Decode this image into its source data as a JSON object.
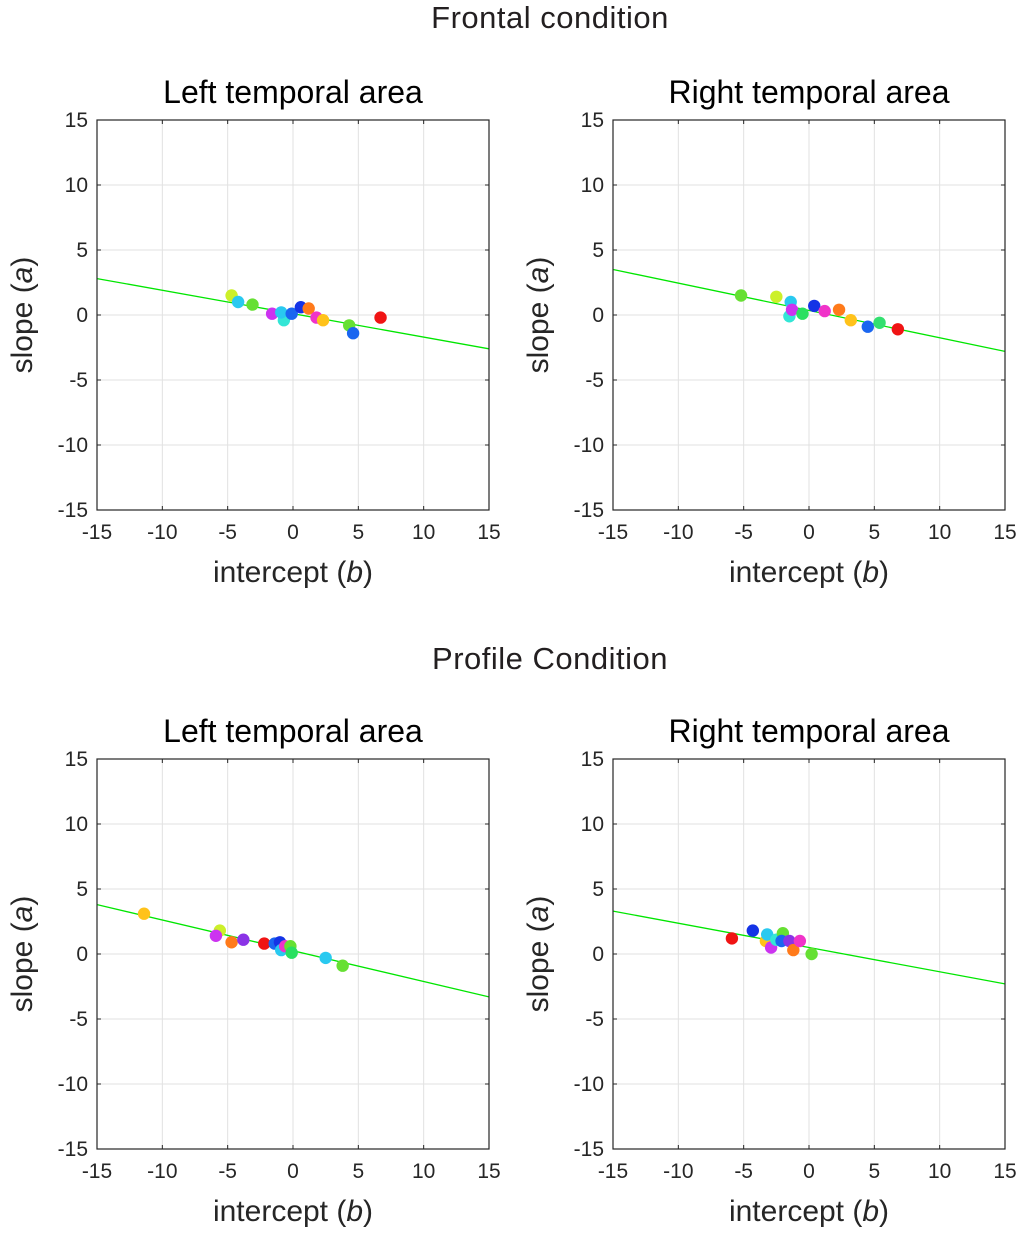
{
  "figure": {
    "sections": [
      {
        "title": "Frontal condition"
      },
      {
        "title": "Profile Condition"
      }
    ]
  },
  "chart_data": [
    {
      "type": "scatter",
      "section": "Frontal condition",
      "title": "Left temporal area",
      "xlabel_text": "intercept (",
      "xlabel_var": "b",
      "xlabel_close": ")",
      "ylabel_text": "slope (",
      "ylabel_var": "a",
      "ylabel_close": ")",
      "xlim": [
        -15,
        15
      ],
      "ylim": [
        -15,
        15
      ],
      "xticks": [
        -15,
        -10,
        -5,
        0,
        5,
        10,
        15
      ],
      "yticks": [
        -15,
        -10,
        -5,
        0,
        5,
        10,
        15
      ],
      "grid": true,
      "fit_line": {
        "color": "#00e600",
        "points": [
          [
            -15,
            2.8
          ],
          [
            15,
            -2.6
          ]
        ]
      },
      "points": [
        {
          "x": -4.7,
          "y": 1.5,
          "color": "#ccf029"
        },
        {
          "x": -4.2,
          "y": 1.0,
          "color": "#29c9f0"
        },
        {
          "x": -3.1,
          "y": 0.8,
          "color": "#66e033"
        },
        {
          "x": -1.6,
          "y": 0.1,
          "color": "#cc33f0"
        },
        {
          "x": -0.7,
          "y": -0.4,
          "color": "#33e6d6"
        },
        {
          "x": -0.9,
          "y": 0.2,
          "color": "#29c9f0"
        },
        {
          "x": -0.1,
          "y": 0.1,
          "color": "#1a66f0"
        },
        {
          "x": 0.6,
          "y": 0.6,
          "color": "#1433e6"
        },
        {
          "x": 1.2,
          "y": 0.5,
          "color": "#ff7a1a"
        },
        {
          "x": 1.8,
          "y": -0.2,
          "color": "#f033c9"
        },
        {
          "x": 2.3,
          "y": -0.4,
          "color": "#ffc21a"
        },
        {
          "x": 4.3,
          "y": -0.8,
          "color": "#66e033"
        },
        {
          "x": 4.6,
          "y": -1.4,
          "color": "#1a66f0"
        },
        {
          "x": 6.7,
          "y": -0.2,
          "color": "#f01414"
        }
      ]
    },
    {
      "type": "scatter",
      "section": "Frontal condition",
      "title": "Right temporal area",
      "xlabel_text": "intercept (",
      "xlabel_var": "b",
      "xlabel_close": ")",
      "ylabel_text": "slope (",
      "ylabel_var": "a",
      "ylabel_close": ")",
      "xlim": [
        -15,
        15
      ],
      "ylim": [
        -15,
        15
      ],
      "xticks": [
        -15,
        -10,
        -5,
        0,
        5,
        10,
        15
      ],
      "yticks": [
        -15,
        -10,
        -5,
        0,
        5,
        10,
        15
      ],
      "grid": true,
      "fit_line": {
        "color": "#00e600",
        "points": [
          [
            -15,
            3.5
          ],
          [
            15,
            -2.8
          ]
        ]
      },
      "points": [
        {
          "x": -5.2,
          "y": 1.5,
          "color": "#66e033"
        },
        {
          "x": -2.5,
          "y": 1.4,
          "color": "#ccf029"
        },
        {
          "x": -1.4,
          "y": 1.0,
          "color": "#29c9f0"
        },
        {
          "x": -1.5,
          "y": -0.1,
          "color": "#33e6d6"
        },
        {
          "x": -1.3,
          "y": 0.4,
          "color": "#cc33f0"
        },
        {
          "x": -0.5,
          "y": 0.1,
          "color": "#29e060"
        },
        {
          "x": 0.4,
          "y": 0.7,
          "color": "#1433e6"
        },
        {
          "x": 1.2,
          "y": 0.3,
          "color": "#f033c9"
        },
        {
          "x": 2.3,
          "y": 0.4,
          "color": "#ff7a1a"
        },
        {
          "x": 3.2,
          "y": -0.4,
          "color": "#ffc21a"
        },
        {
          "x": 4.5,
          "y": -0.9,
          "color": "#1a66f0"
        },
        {
          "x": 5.4,
          "y": -0.6,
          "color": "#33e070"
        },
        {
          "x": 6.8,
          "y": -1.1,
          "color": "#f01414"
        }
      ]
    },
    {
      "type": "scatter",
      "section": "Profile Condition",
      "title": "Left temporal area",
      "xlabel_text": "intercept (",
      "xlabel_var": "b",
      "xlabel_close": ")",
      "ylabel_text": "slope (",
      "ylabel_var": "a",
      "ylabel_close": ")",
      "xlim": [
        -15,
        15
      ],
      "ylim": [
        -15,
        15
      ],
      "xticks": [
        -15,
        -10,
        -5,
        0,
        5,
        10,
        15
      ],
      "yticks": [
        -15,
        -10,
        -5,
        0,
        5,
        10,
        15
      ],
      "grid": true,
      "fit_line": {
        "color": "#00e600",
        "points": [
          [
            -15,
            3.8
          ],
          [
            15,
            -3.3
          ]
        ]
      },
      "points": [
        {
          "x": -11.4,
          "y": 3.1,
          "color": "#ffc21a"
        },
        {
          "x": -5.6,
          "y": 1.8,
          "color": "#ccf029"
        },
        {
          "x": -5.9,
          "y": 1.4,
          "color": "#cc33f0"
        },
        {
          "x": -4.7,
          "y": 0.9,
          "color": "#ff7a1a"
        },
        {
          "x": -3.8,
          "y": 1.1,
          "color": "#8a33e6"
        },
        {
          "x": -2.2,
          "y": 0.8,
          "color": "#f01414"
        },
        {
          "x": -1.4,
          "y": 0.8,
          "color": "#1a66f0"
        },
        {
          "x": -1.0,
          "y": 0.9,
          "color": "#1433e6"
        },
        {
          "x": -0.9,
          "y": 0.3,
          "color": "#29c9f0"
        },
        {
          "x": -0.6,
          "y": 0.6,
          "color": "#f033c9"
        },
        {
          "x": -0.2,
          "y": 0.6,
          "color": "#66e033"
        },
        {
          "x": -0.1,
          "y": 0.1,
          "color": "#29e060"
        },
        {
          "x": 2.5,
          "y": -0.3,
          "color": "#29c9f0"
        },
        {
          "x": 3.8,
          "y": -0.9,
          "color": "#66e033"
        }
      ]
    },
    {
      "type": "scatter",
      "section": "Profile Condition",
      "title": "Right temporal area",
      "xlabel_text": "intercept (",
      "xlabel_var": "b",
      "xlabel_close": ")",
      "ylabel_text": "slope (",
      "ylabel_var": "a",
      "ylabel_close": ")",
      "xlim": [
        -15,
        15
      ],
      "ylim": [
        -15,
        15
      ],
      "xticks": [
        -15,
        -10,
        -5,
        0,
        5,
        10,
        15
      ],
      "yticks": [
        -15,
        -10,
        -5,
        0,
        5,
        10,
        15
      ],
      "grid": true,
      "fit_line": {
        "color": "#00e600",
        "points": [
          [
            -15,
            3.3
          ],
          [
            15,
            -2.3
          ]
        ]
      },
      "points": [
        {
          "x": -5.9,
          "y": 1.2,
          "color": "#f01414"
        },
        {
          "x": -4.3,
          "y": 1.8,
          "color": "#1433e6"
        },
        {
          "x": -3.3,
          "y": 1.0,
          "color": "#ffc21a"
        },
        {
          "x": -3.2,
          "y": 1.5,
          "color": "#29c9f0"
        },
        {
          "x": -2.9,
          "y": 0.5,
          "color": "#cc33f0"
        },
        {
          "x": -2.5,
          "y": 1.1,
          "color": "#33e6d6"
        },
        {
          "x": -2.0,
          "y": 1.6,
          "color": "#66e033"
        },
        {
          "x": -2.1,
          "y": 1.0,
          "color": "#1a66f0"
        },
        {
          "x": -1.5,
          "y": 1.0,
          "color": "#8a33e6"
        },
        {
          "x": -1.2,
          "y": 0.3,
          "color": "#ff7a1a"
        },
        {
          "x": -0.7,
          "y": 1.0,
          "color": "#f033c9"
        },
        {
          "x": 0.2,
          "y": 0.0,
          "color": "#66e033"
        }
      ]
    }
  ]
}
